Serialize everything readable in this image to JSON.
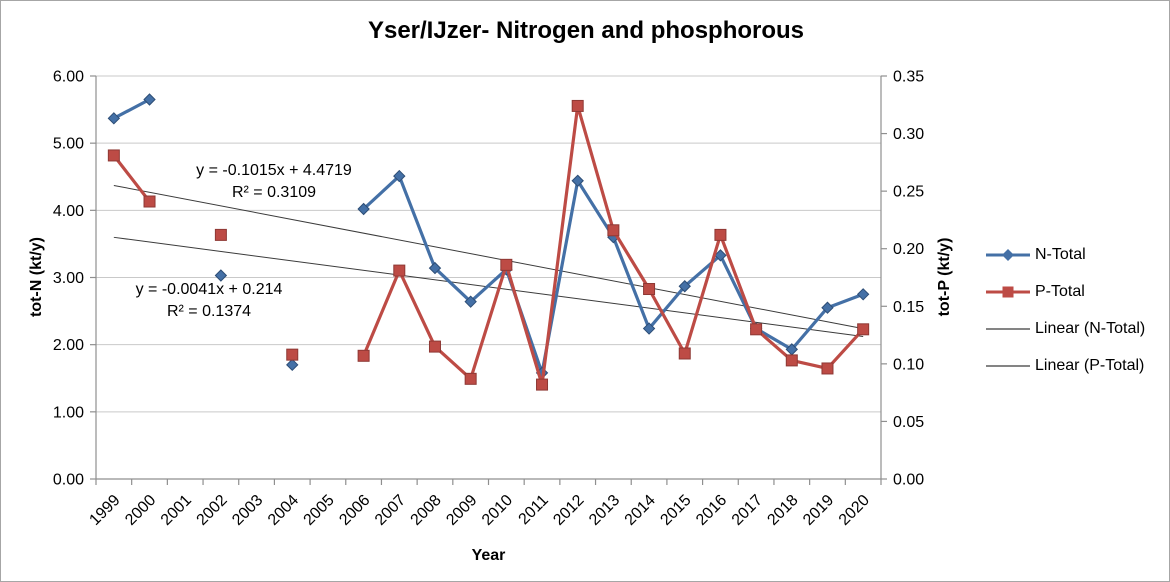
{
  "chart_data": {
    "type": "line",
    "title": "Yser/IJzer- Nitrogen and phosphorous",
    "xlabel": "Year",
    "ylabel_left": "tot-N (kt/y)",
    "ylabel_right": "tot-P (kt/y)",
    "categories": [
      "1999",
      "2000",
      "2001",
      "2002",
      "2003",
      "2004",
      "2005",
      "2006",
      "2007",
      "2008",
      "2009",
      "2010",
      "2011",
      "2012",
      "2013",
      "2014",
      "2015",
      "2016",
      "2017",
      "2018",
      "2019",
      "2020"
    ],
    "series": [
      {
        "name": "N-Total",
        "axis": "left",
        "color": "#4470a6",
        "border": "#2d4d75",
        "marker": "diamond",
        "values": [
          5.37,
          5.65,
          null,
          3.03,
          null,
          1.7,
          null,
          4.02,
          4.51,
          3.14,
          2.64,
          3.12,
          1.58,
          4.44,
          3.6,
          2.24,
          2.87,
          3.33,
          2.24,
          1.93,
          2.55,
          2.75
        ]
      },
      {
        "name": "P-Total",
        "axis": "right",
        "color": "#bd4b45",
        "border": "#8e3834",
        "marker": "square",
        "values": [
          0.281,
          0.241,
          null,
          0.212,
          null,
          0.108,
          null,
          0.107,
          0.181,
          0.115,
          0.087,
          0.186,
          0.082,
          0.324,
          0.216,
          0.165,
          0.109,
          0.212,
          0.13,
          0.103,
          0.096,
          0.13
        ]
      }
    ],
    "trendlines": [
      {
        "name": "Linear (N-Total)",
        "axis": "left",
        "slope": -0.1015,
        "intercept": 4.4719,
        "equation": "y = -0.1015x + 4.4719",
        "r2": "R² = 0.3109"
      },
      {
        "name": "Linear (P-Total)",
        "axis": "right",
        "slope": -0.0041,
        "intercept": 0.214,
        "equation": "y = -0.0041x + 0.214",
        "r2": "R² = 0.1374"
      }
    ],
    "axes": {
      "left": {
        "min": 0,
        "max": 6,
        "step": 1,
        "tick_labels": [
          "0.00",
          "1.00",
          "2.00",
          "3.00",
          "4.00",
          "5.00",
          "6.00"
        ]
      },
      "right": {
        "min": 0,
        "max": 0.35,
        "step": 0.05,
        "tick_labels": [
          "0.00",
          "0.05",
          "0.10",
          "0.15",
          "0.20",
          "0.25",
          "0.30",
          "0.35"
        ]
      }
    },
    "legend": {
      "position": "right",
      "entries": [
        "N-Total",
        "P-Total",
        "Linear (N-Total)",
        "Linear (P-Total)"
      ]
    },
    "grid": "horizontal",
    "style": {
      "grid_color": "#c9c9c9",
      "axis_color": "#8f8f8f",
      "trendline_color": "#3b3b3b",
      "text_color": "#000000"
    }
  }
}
